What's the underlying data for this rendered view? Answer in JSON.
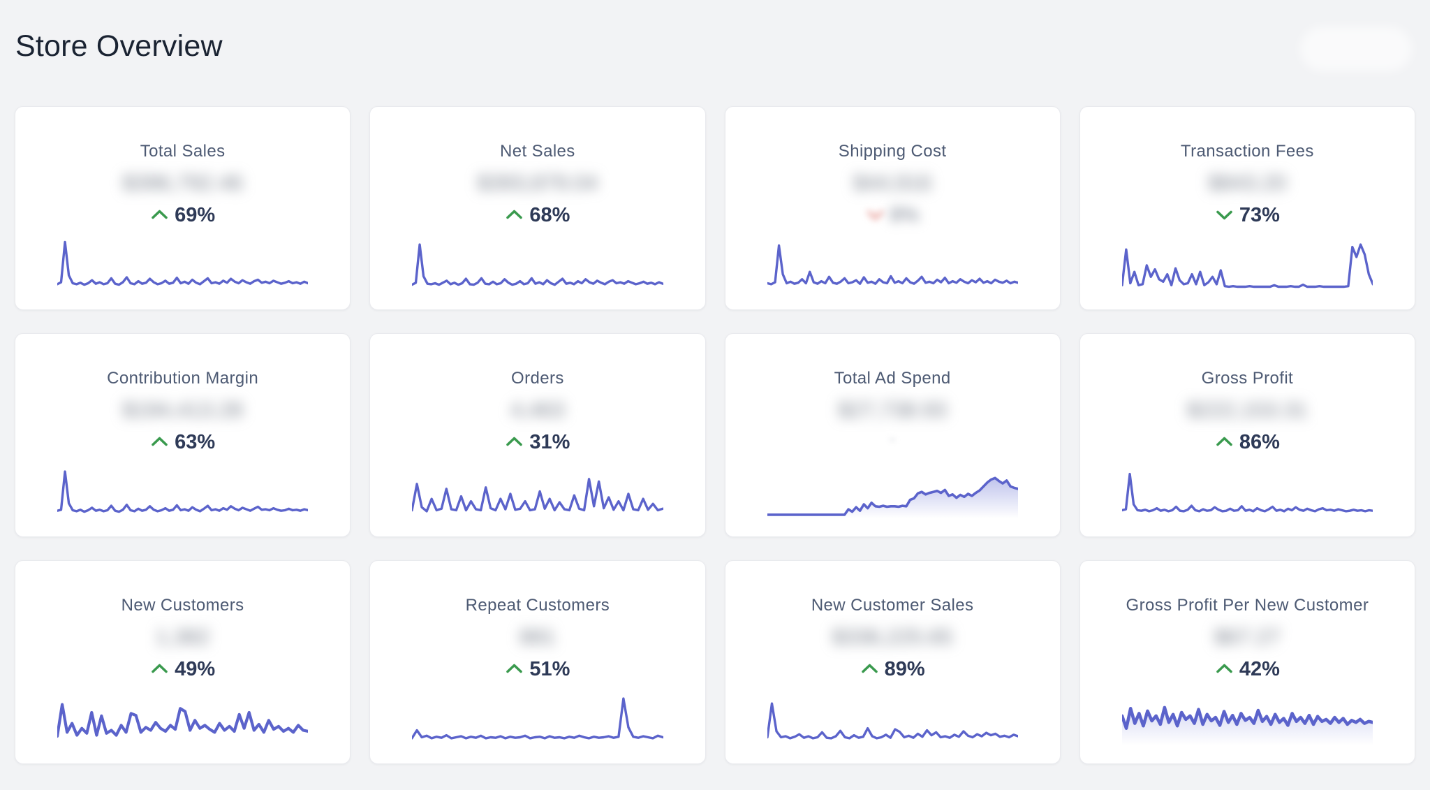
{
  "page": {
    "title": "Store Overview",
    "background": "#f2f3f5"
  },
  "theme": {
    "accent": "#5b63cb",
    "accent_fill": "#8a92dd",
    "green": "#3a9a4e",
    "red": "#e0827b",
    "navy": "#2e3a57",
    "title_color": "#1a2332",
    "card_label_color": "#4d5a73",
    "card_bg": "#ffffff",
    "page_bg": "#f2f3f5"
  },
  "header": {
    "title": "Store Overview",
    "action_button": {
      "label": "",
      "blurred": true
    }
  },
  "cards": [
    {
      "title": "Total Sales",
      "value": "$396,792.46",
      "value_blurred": true,
      "change": {
        "direction": "up",
        "color": "green",
        "pct": "69%",
        "blurred": false
      },
      "sparkline": {
        "style": "line",
        "stroke_width": 3.4,
        "values": [
          10,
          14,
          95,
          28,
          12,
          10,
          13,
          9,
          12,
          18,
          11,
          14,
          10,
          12,
          22,
          11,
          9,
          14,
          24,
          12,
          10,
          16,
          11,
          13,
          21,
          14,
          10,
          12,
          17,
          11,
          13,
          23,
          12,
          15,
          11,
          19,
          13,
          10,
          16,
          22,
          12,
          14,
          11,
          17,
          13,
          21,
          15,
          12,
          18,
          14,
          11,
          16,
          19,
          13,
          15,
          12,
          17,
          14,
          11,
          13,
          16,
          12,
          14,
          11,
          15,
          12
        ]
      }
    },
    {
      "title": "Net Sales",
      "value": "$393,879.04",
      "value_blurred": true,
      "change": {
        "direction": "up",
        "color": "green",
        "pct": "68%",
        "blurred": false
      },
      "sparkline": {
        "style": "line",
        "stroke_width": 3.4,
        "values": [
          9,
          13,
          90,
          26,
          11,
          10,
          12,
          9,
          13,
          17,
          10,
          13,
          9,
          12,
          21,
          10,
          9,
          13,
          22,
          11,
          10,
          15,
          10,
          12,
          20,
          13,
          9,
          11,
          16,
          10,
          12,
          22,
          11,
          14,
          10,
          18,
          12,
          9,
          15,
          21,
          11,
          13,
          10,
          16,
          12,
          20,
          14,
          11,
          17,
          13,
          10,
          15,
          18,
          12,
          14,
          11,
          16,
          13,
          10,
          12,
          15,
          11,
          13,
          10,
          14,
          11
        ]
      }
    },
    {
      "title": "Shipping Cost",
      "value": "$44,916",
      "value_blurred": true,
      "change": {
        "direction": "down",
        "color": "red",
        "pct": "8%",
        "blurred": true
      },
      "sparkline": {
        "style": "line",
        "stroke_width": 3.4,
        "values": [
          12,
          10,
          14,
          88,
          30,
          12,
          15,
          11,
          13,
          20,
          12,
          35,
          14,
          11,
          16,
          12,
          25,
          13,
          11,
          15,
          22,
          12,
          14,
          18,
          11,
          24,
          13,
          15,
          11,
          20,
          14,
          12,
          26,
          13,
          16,
          12,
          22,
          14,
          11,
          17,
          25,
          13,
          15,
          12,
          19,
          14,
          23,
          12,
          16,
          13,
          20,
          15,
          12,
          18,
          14,
          21,
          13,
          16,
          12,
          19,
          15,
          13,
          17,
          12,
          15,
          13
        ]
      }
    },
    {
      "title": "Transaction Fees",
      "value": "$843.20",
      "value_blurred": true,
      "change": {
        "direction": "down",
        "color": "green",
        "pct": "73%",
        "blurred": false
      },
      "sparkline": {
        "style": "line",
        "stroke_width": 3.4,
        "values": [
          8,
          80,
          12,
          35,
          8,
          10,
          48,
          25,
          40,
          20,
          15,
          30,
          8,
          42,
          18,
          10,
          12,
          30,
          10,
          35,
          8,
          14,
          25,
          10,
          38,
          6,
          5,
          6,
          5,
          5,
          5,
          6,
          5,
          5,
          5,
          5,
          5,
          8,
          5,
          5,
          5,
          6,
          5,
          5,
          9,
          5,
          5,
          5,
          6,
          5,
          5,
          5,
          5,
          5,
          5,
          6,
          85,
          65,
          90,
          70,
          30,
          10
        ]
      }
    },
    {
      "title": "Contribution Margin",
      "value": "$194,413.28",
      "value_blurred": true,
      "change": {
        "direction": "up",
        "color": "green",
        "pct": "63%",
        "blurred": false
      },
      "sparkline": {
        "style": "line",
        "stroke_width": 3.4,
        "values": [
          11,
          13,
          90,
          26,
          12,
          10,
          13,
          9,
          12,
          17,
          11,
          13,
          10,
          12,
          21,
          11,
          9,
          13,
          23,
          12,
          10,
          15,
          11,
          13,
          20,
          13,
          10,
          12,
          16,
          11,
          13,
          22,
          12,
          14,
          11,
          18,
          13,
          10,
          15,
          21,
          12,
          14,
          11,
          16,
          13,
          20,
          15,
          12,
          17,
          14,
          11,
          15,
          19,
          13,
          14,
          12,
          16,
          13,
          11,
          12,
          15,
          12,
          13,
          11,
          14,
          12
        ]
      }
    },
    {
      "title": "Orders",
      "value": "4,463",
      "value_blurred": true,
      "change": {
        "direction": "up",
        "color": "green",
        "pct": "31%",
        "blurred": false
      },
      "sparkline": {
        "style": "line",
        "stroke_width": 3.4,
        "values": [
          12,
          65,
          18,
          10,
          35,
          12,
          15,
          55,
          14,
          12,
          40,
          12,
          30,
          14,
          12,
          58,
          16,
          12,
          35,
          14,
          45,
          13,
          15,
          30,
          12,
          14,
          50,
          15,
          35,
          12,
          28,
          14,
          12,
          42,
          15,
          12,
          75,
          20,
          70,
          16,
          38,
          13,
          30,
          12,
          45,
          14,
          12,
          35,
          13,
          25,
          12,
          15
        ]
      }
    },
    {
      "title": "Total Ad Spend",
      "value": "$27,738.93",
      "value_blurred": true,
      "change": {
        "direction": "none",
        "color": "gray",
        "pct": "-",
        "blurred": true
      },
      "sparkline": {
        "style": "area",
        "stroke_width": 3.6,
        "values": [
          3,
          3,
          3,
          3,
          3,
          3,
          3,
          3,
          3,
          3,
          3,
          3,
          3,
          3,
          3,
          3,
          3,
          3,
          3,
          3,
          3,
          14,
          9,
          18,
          11,
          24,
          16,
          27,
          20,
          19,
          21,
          19,
          20,
          20,
          19,
          21,
          20,
          33,
          36,
          46,
          49,
          44,
          47,
          49,
          51,
          47,
          53,
          41,
          44,
          37,
          43,
          39,
          45,
          41,
          47,
          52,
          60,
          68,
          74,
          77,
          71,
          66,
          72,
          60,
          57,
          55
        ]
      }
    },
    {
      "title": "Gross Profit",
      "value": "$222,153.31",
      "value_blurred": true,
      "change": {
        "direction": "up",
        "color": "green",
        "pct": "86%",
        "blurred": false
      },
      "sparkline": {
        "style": "line",
        "stroke_width": 3.4,
        "values": [
          12,
          14,
          85,
          24,
          12,
          11,
          13,
          10,
          12,
          16,
          11,
          13,
          10,
          12,
          19,
          11,
          10,
          13,
          21,
          12,
          10,
          14,
          11,
          12,
          18,
          13,
          10,
          11,
          15,
          11,
          12,
          20,
          11,
          13,
          10,
          16,
          12,
          10,
          14,
          19,
          11,
          13,
          10,
          15,
          12,
          18,
          13,
          11,
          15,
          12,
          10,
          14,
          16,
          12,
          13,
          11,
          14,
          12,
          10,
          11,
          13,
          11,
          12,
          10,
          12,
          11
        ]
      }
    },
    {
      "title": "New Customers",
      "value": "1,382",
      "value_blurred": true,
      "change": {
        "direction": "up",
        "color": "green",
        "pct": "49%",
        "blurred": false
      },
      "sparkline": {
        "style": "line",
        "stroke_width": 4.2,
        "values": [
          14,
          78,
          22,
          40,
          16,
          30,
          20,
          62,
          16,
          55,
          20,
          26,
          16,
          36,
          22,
          60,
          56,
          22,
          32,
          26,
          42,
          30,
          24,
          36,
          28,
          70,
          64,
          26,
          46,
          30,
          36,
          28,
          22,
          40,
          26,
          34,
          24,
          58,
          30,
          62,
          26,
          38,
          22,
          46,
          28,
          34,
          24,
          30,
          22,
          36,
          26,
          24
        ]
      }
    },
    {
      "title": "Repeat Customers",
      "value": "881",
      "value_blurred": true,
      "change": {
        "direction": "up",
        "color": "green",
        "pct": "51%",
        "blurred": false
      },
      "sparkline": {
        "style": "line",
        "stroke_width": 3.4,
        "values": [
          10,
          26,
          12,
          15,
          10,
          13,
          11,
          16,
          10,
          12,
          14,
          10,
          13,
          11,
          15,
          10,
          12,
          11,
          14,
          10,
          13,
          11,
          12,
          15,
          10,
          12,
          13,
          10,
          14,
          11,
          12,
          10,
          13,
          11,
          15,
          12,
          10,
          13,
          11,
          12,
          14,
          11,
          13,
          90,
          32,
          13,
          11,
          14,
          12,
          10,
          15,
          12
        ]
      }
    },
    {
      "title": "New Customer Sales",
      "value": "$336,225.65",
      "value_blurred": true,
      "change": {
        "direction": "up",
        "color": "green",
        "pct": "89%",
        "blurred": false
      },
      "sparkline": {
        "style": "line",
        "stroke_width": 3.4,
        "values": [
          12,
          80,
          24,
          12,
          14,
          10,
          13,
          18,
          11,
          14,
          10,
          12,
          22,
          11,
          10,
          14,
          25,
          12,
          10,
          16,
          11,
          13,
          30,
          14,
          10,
          12,
          17,
          11,
          28,
          23,
          12,
          15,
          11,
          19,
          13,
          26,
          16,
          22,
          12,
          14,
          11,
          17,
          13,
          24,
          15,
          12,
          18,
          14,
          21,
          16,
          19,
          13,
          15,
          12,
          17,
          14
        ]
      }
    },
    {
      "title": "Gross Profit Per New Customer",
      "value": "$67.27",
      "value_blurred": true,
      "change": {
        "direction": "up",
        "color": "green",
        "pct": "42%",
        "blurred": false
      },
      "sparkline": {
        "style": "thick-fade",
        "stroke_width": 4.6,
        "values": [
          55,
          30,
          70,
          40,
          60,
          35,
          65,
          45,
          55,
          38,
          72,
          42,
          58,
          35,
          62,
          48,
          55,
          40,
          68,
          38,
          58,
          45,
          52,
          36,
          64,
          42,
          56,
          38,
          60,
          46,
          52,
          40,
          66,
          44,
          54,
          38,
          58,
          42,
          50,
          36,
          60,
          44,
          52,
          40,
          56,
          38,
          54,
          44,
          48,
          40,
          52,
          42,
          50,
          38,
          46,
          42,
          48,
          40,
          44,
          42
        ]
      }
    }
  ]
}
